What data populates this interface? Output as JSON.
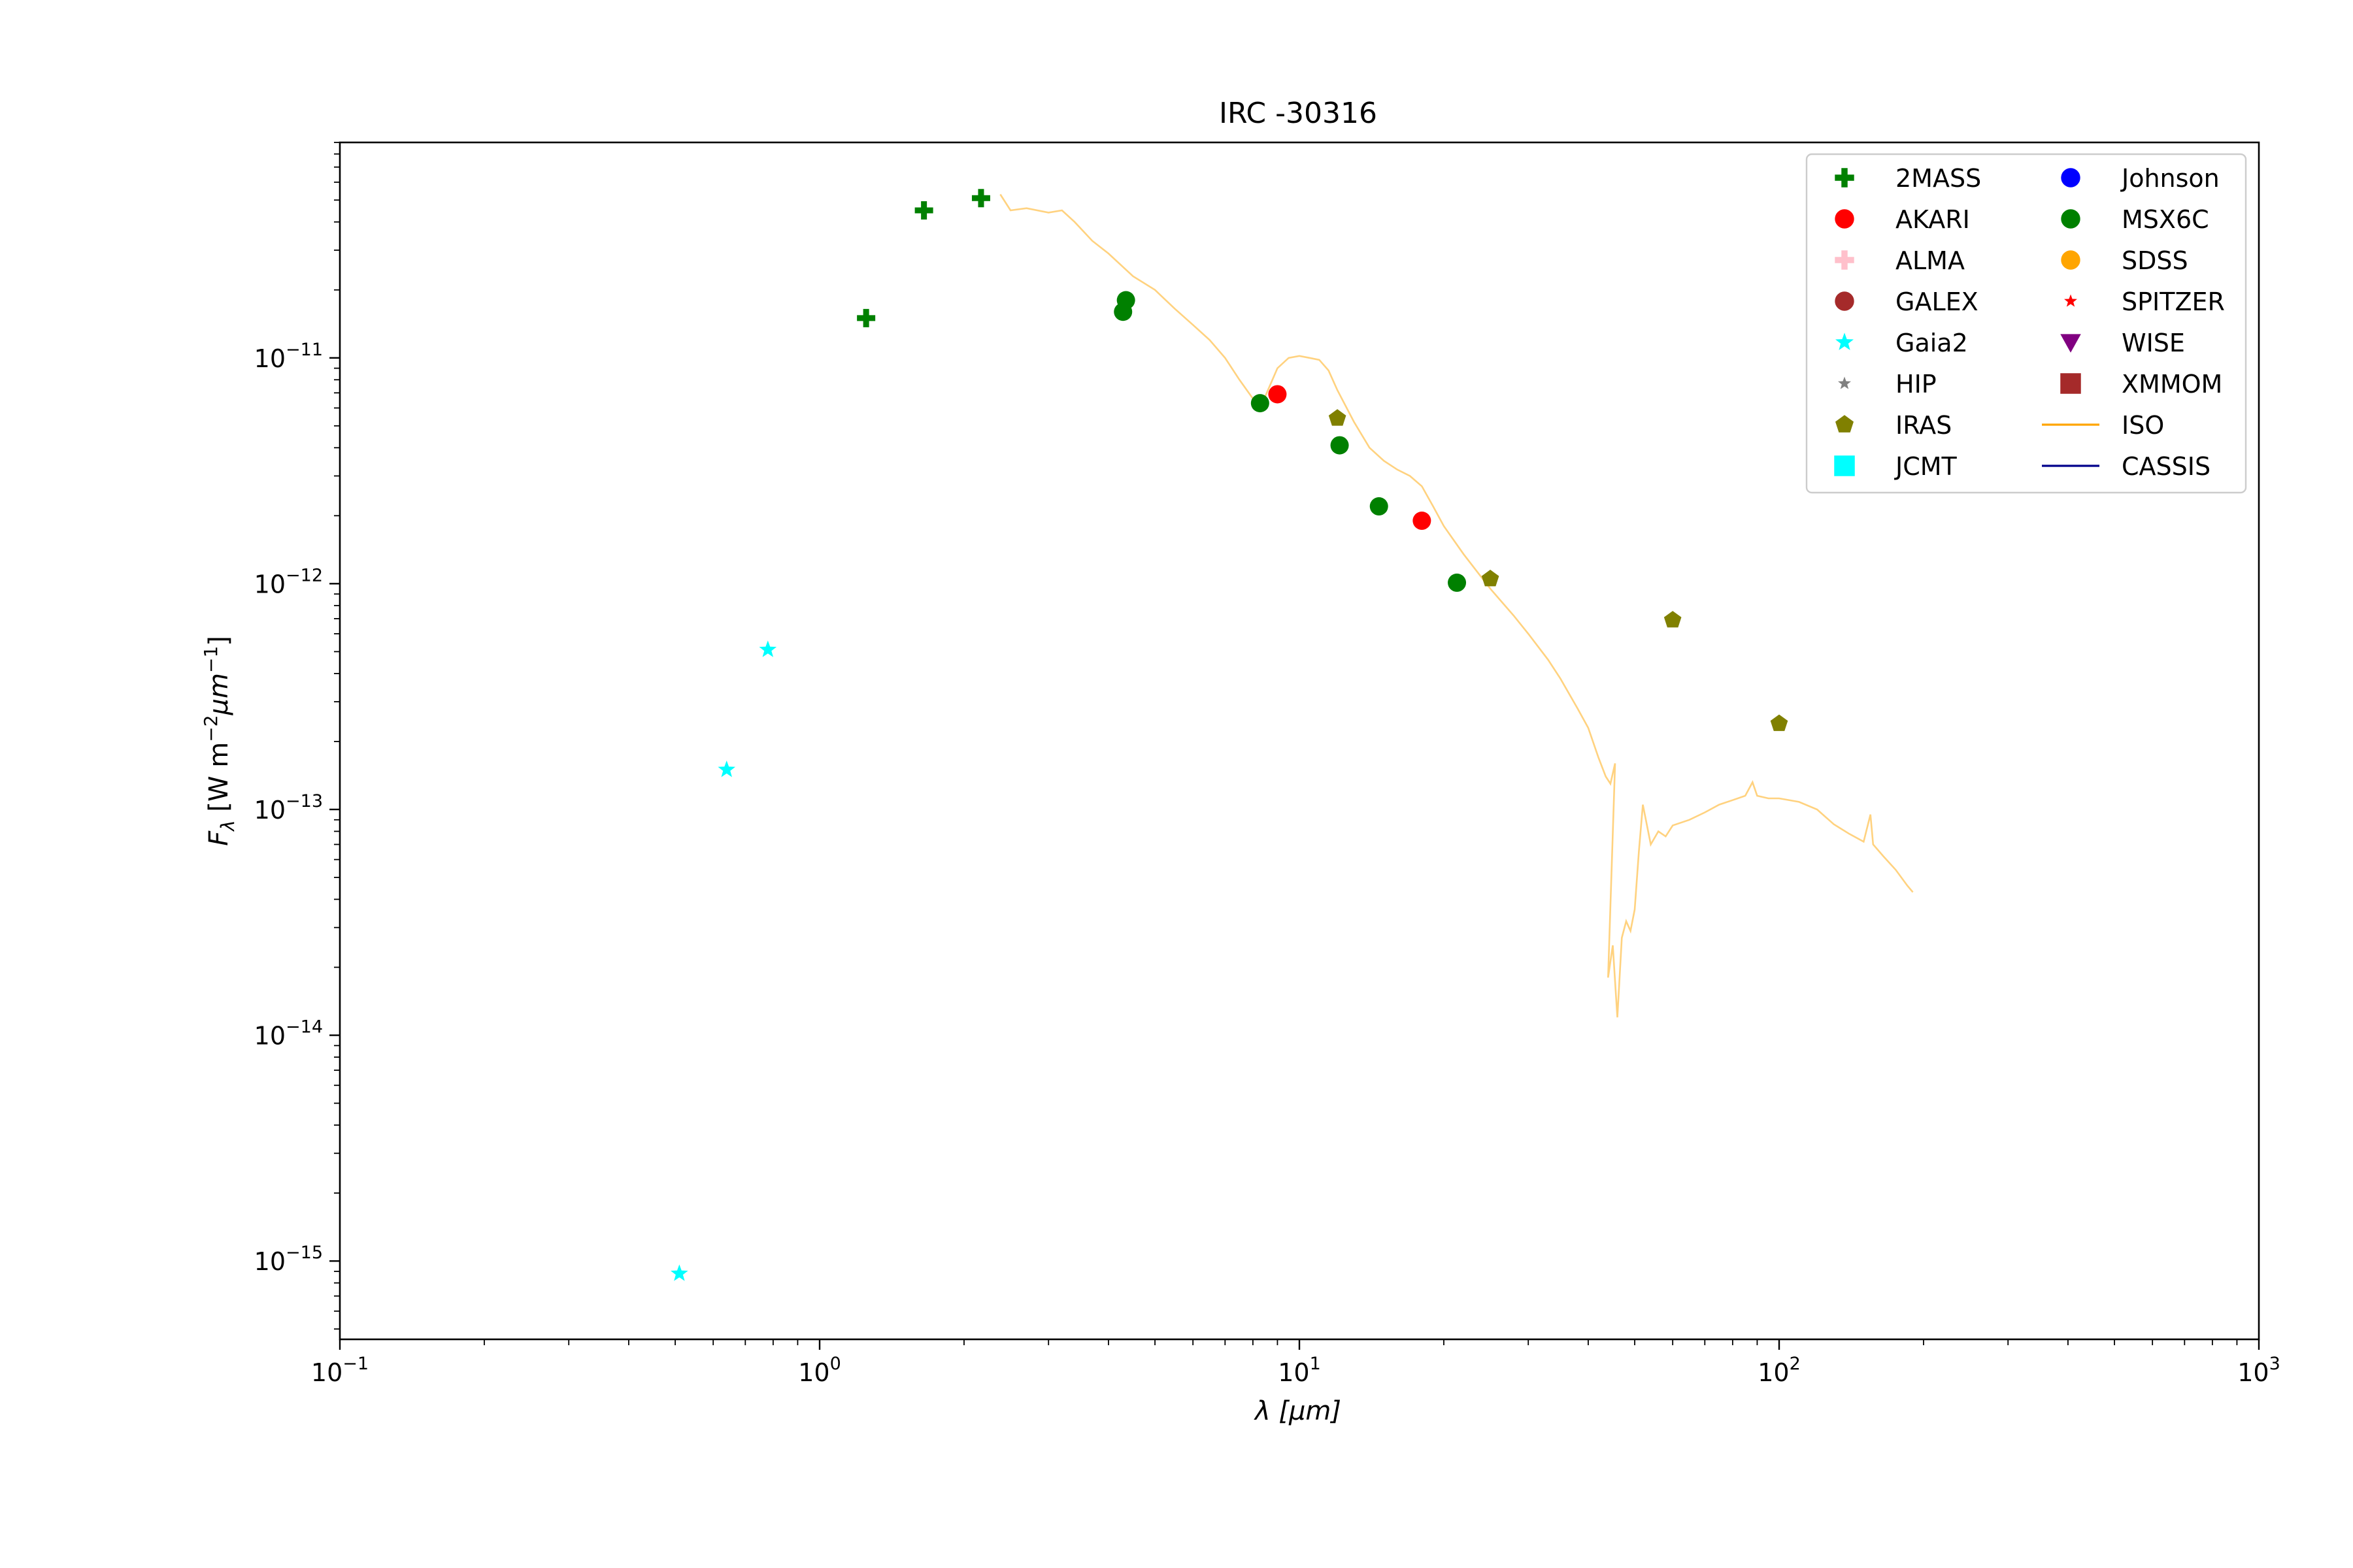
{
  "chart_data": {
    "type": "scatter",
    "title": "IRC -30316",
    "xlabel": "λ [μm]",
    "ylabel": "Fλ [W m⁻²μm⁻¹]",
    "xscale": "log",
    "yscale": "log",
    "xlim": [
      0.1,
      1000
    ],
    "ylim": [
      4.5e-16,
      9e-11
    ],
    "grid": false,
    "legend_position": "top-right",
    "x_ticks": [
      {
        "value": 0.1,
        "base": "10",
        "exp": "−1"
      },
      {
        "value": 1,
        "base": "10",
        "exp": "0"
      },
      {
        "value": 10,
        "base": "10",
        "exp": "1"
      },
      {
        "value": 100,
        "base": "10",
        "exp": "2"
      },
      {
        "value": 1000,
        "base": "10",
        "exp": "3"
      }
    ],
    "y_ticks": [
      {
        "value": 1e-15,
        "base": "10",
        "exp": "−15"
      },
      {
        "value": 1e-14,
        "base": "10",
        "exp": "−14"
      },
      {
        "value": 1e-13,
        "base": "10",
        "exp": "−13"
      },
      {
        "value": 1e-12,
        "base": "10",
        "exp": "−12"
      },
      {
        "value": 1e-11,
        "base": "10",
        "exp": "−11"
      }
    ],
    "series": [
      {
        "name": "2MASS",
        "marker": "plus",
        "color": "#008000",
        "points": [
          [
            1.25,
            1.5e-11
          ],
          [
            1.65,
            4.5e-11
          ],
          [
            2.17,
            5.1e-11
          ]
        ]
      },
      {
        "name": "AKARI",
        "marker": "circle",
        "color": "#ff0000",
        "points": [
          [
            9.0,
            6.9e-12
          ],
          [
            18.0,
            1.9e-12
          ]
        ]
      },
      {
        "name": "ALMA",
        "marker": "plus",
        "color": "#ffc0cb",
        "points": []
      },
      {
        "name": "GALEX",
        "marker": "circle",
        "color": "#a52a2a",
        "points": []
      },
      {
        "name": "Gaia2",
        "marker": "star",
        "color": "#00ffff",
        "points": [
          [
            0.51,
            8.8e-16
          ],
          [
            0.64,
            1.5e-13
          ],
          [
            0.78,
            5.1e-13
          ]
        ]
      },
      {
        "name": "HIP",
        "marker": "star",
        "color": "#808080",
        "points": []
      },
      {
        "name": "IRAS",
        "marker": "pentagon",
        "color": "#808000",
        "points": [
          [
            12.0,
            5.4e-12
          ],
          [
            25.0,
            1.05e-12
          ],
          [
            60.0,
            6.9e-13
          ],
          [
            100.0,
            2.4e-13
          ]
        ]
      },
      {
        "name": "JCMT",
        "marker": "square",
        "color": "#00ffff",
        "points": []
      },
      {
        "name": "Johnson",
        "marker": "circle",
        "color": "#0000ff",
        "points": []
      },
      {
        "name": "MSX6C",
        "marker": "circle",
        "color": "#008000",
        "points": [
          [
            4.29,
            1.6e-11
          ],
          [
            4.35,
            1.8e-11
          ],
          [
            8.28,
            6.3e-12
          ],
          [
            12.13,
            4.1e-12
          ],
          [
            14.65,
            2.2e-12
          ],
          [
            21.3,
            1.01e-12
          ]
        ]
      },
      {
        "name": "SDSS",
        "marker": "circle",
        "color": "#ffa500",
        "points": []
      },
      {
        "name": "SPITZER",
        "marker": "star",
        "color": "#ff0000",
        "points": []
      },
      {
        "name": "WISE",
        "marker": "triangle-down",
        "color": "#800080",
        "points": []
      },
      {
        "name": "XMMOM",
        "marker": "square",
        "color": "#a52a2a",
        "points": []
      },
      {
        "name": "ISO",
        "marker": "line",
        "color": "#ffa500",
        "alpha": 0.5,
        "points": [
          [
            2.38,
            5.3e-11
          ],
          [
            2.5,
            4.5e-11
          ],
          [
            2.7,
            4.6e-11
          ],
          [
            3.0,
            4.4e-11
          ],
          [
            3.2,
            4.5e-11
          ],
          [
            3.4,
            4e-11
          ],
          [
            3.7,
            3.3e-11
          ],
          [
            4.0,
            2.9e-11
          ],
          [
            4.5,
            2.3e-11
          ],
          [
            5.0,
            2e-11
          ],
          [
            5.5,
            1.65e-11
          ],
          [
            6.0,
            1.4e-11
          ],
          [
            6.5,
            1.2e-11
          ],
          [
            7.0,
            1e-11
          ],
          [
            7.5,
            8e-12
          ],
          [
            8.0,
            6.6e-12
          ],
          [
            8.5,
            6.8e-12
          ],
          [
            9.0,
            9e-12
          ],
          [
            9.5,
            1e-11
          ],
          [
            10.0,
            1.02e-11
          ],
          [
            10.5,
            1e-11
          ],
          [
            11.0,
            9.8e-12
          ],
          [
            11.5,
            8.8e-12
          ],
          [
            12.0,
            7.2e-12
          ],
          [
            13.0,
            5.2e-12
          ],
          [
            14.0,
            4e-12
          ],
          [
            15.0,
            3.5e-12
          ],
          [
            16.0,
            3.2e-12
          ],
          [
            17.0,
            3e-12
          ],
          [
            18.0,
            2.7e-12
          ],
          [
            19.0,
            2.2e-12
          ],
          [
            20.0,
            1.8e-12
          ],
          [
            22.0,
            1.35e-12
          ],
          [
            25.0,
            9.5e-13
          ],
          [
            28.0,
            7.2e-13
          ],
          [
            30.0,
            6e-13
          ],
          [
            33.0,
            4.6e-13
          ],
          [
            35.0,
            3.8e-13
          ],
          [
            38.0,
            2.8e-13
          ],
          [
            40.0,
            2.3e-13
          ],
          [
            42.0,
            1.7e-13
          ],
          [
            43.5,
            1.4e-13
          ],
          [
            44.5,
            1.3e-13
          ],
          [
            45.5,
            1.6e-13
          ],
          [
            44.0,
            1.8e-14
          ],
          [
            45.0,
            2.5e-14
          ],
          [
            46.0,
            1.2e-14
          ],
          [
            47.0,
            2.7e-14
          ],
          [
            48.0,
            3.2e-14
          ],
          [
            49.0,
            2.9e-14
          ],
          [
            50.0,
            3.6e-14
          ],
          [
            51.0,
            6.5e-14
          ],
          [
            52.0,
            1.05e-13
          ],
          [
            54.0,
            7e-14
          ],
          [
            56.0,
            8e-14
          ],
          [
            58.0,
            7.6e-14
          ],
          [
            60.0,
            8.5e-14
          ],
          [
            65.0,
            9e-14
          ],
          [
            70.0,
            9.7e-14
          ],
          [
            75.0,
            1.05e-13
          ],
          [
            80.0,
            1.1e-13
          ],
          [
            85.0,
            1.15e-13
          ],
          [
            88.0,
            1.32e-13
          ],
          [
            90.0,
            1.15e-13
          ],
          [
            95.0,
            1.12e-13
          ],
          [
            100.0,
            1.12e-13
          ],
          [
            110.0,
            1.08e-13
          ],
          [
            120.0,
            1e-13
          ],
          [
            130.0,
            8.6e-14
          ],
          [
            140.0,
            7.8e-14
          ],
          [
            150.0,
            7.2e-14
          ],
          [
            155.0,
            9.5e-14
          ],
          [
            157.0,
            7e-14
          ],
          [
            165.0,
            6.2e-14
          ],
          [
            175.0,
            5.4e-14
          ],
          [
            185.0,
            4.6e-14
          ],
          [
            190.0,
            4.3e-14
          ]
        ]
      },
      {
        "name": "CASSIS",
        "marker": "line",
        "color": "#00008b",
        "points": []
      }
    ]
  }
}
